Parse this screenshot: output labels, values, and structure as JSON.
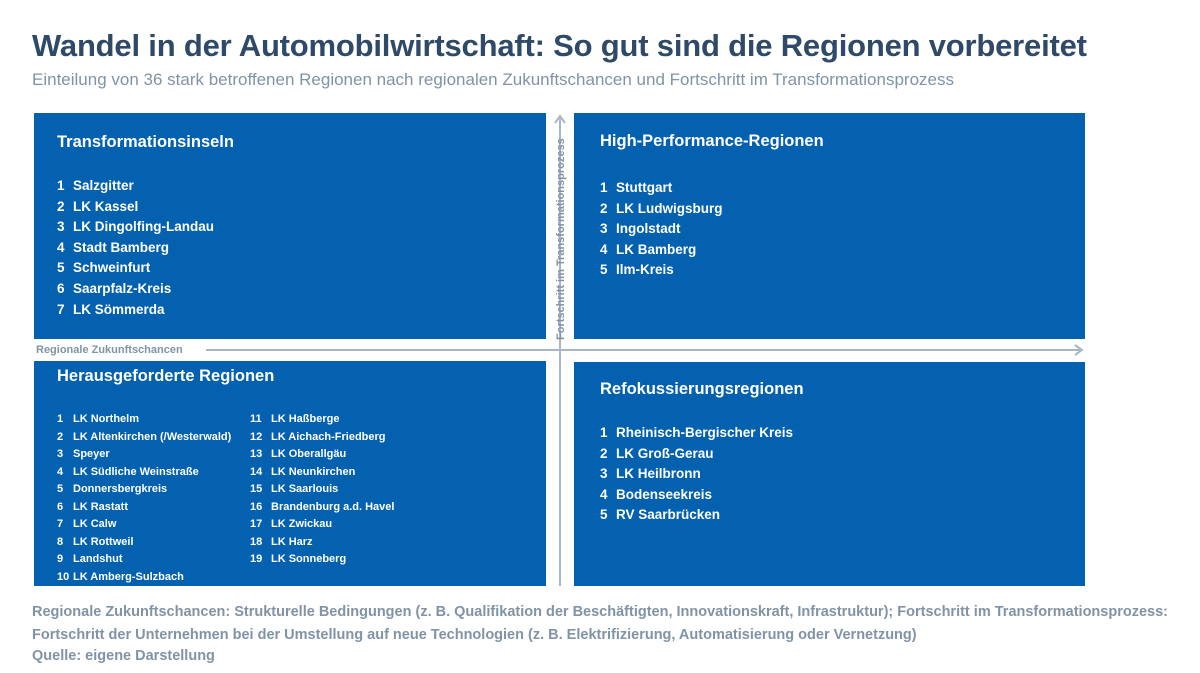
{
  "title": "Wandel in der Automobilwirtschaft: So gut sind die Regionen vorbereitet",
  "subtitle": "Einteilung von 36 stark betroffenen Regionen nach regionalen Zukunftschancen und Fortschritt im Transformationsprozess",
  "axes": {
    "x_label": "Regionale Zukunftschancen",
    "y_label": "Fortschritt im Transformationsprozess"
  },
  "colors": {
    "quadrant_fill": "#0461b0",
    "title_text": "#2f4a68",
    "muted_text": "#8193a6",
    "axis_line": "#a9b6c6"
  },
  "quadrants": {
    "top_left": {
      "title": "Transformationsinseln",
      "items": [
        {
          "num": "1",
          "name": "Salzgitter"
        },
        {
          "num": "2",
          "name": "LK Kassel"
        },
        {
          "num": "3",
          "name": "LK Dingolfing-Landau"
        },
        {
          "num": "4",
          "name": "Stadt Bamberg"
        },
        {
          "num": "5",
          "name": "Schweinfurt"
        },
        {
          "num": "6",
          "name": "Saarpfalz-Kreis"
        },
        {
          "num": "7",
          "name": "LK  Sömmerda"
        }
      ]
    },
    "top_right": {
      "title": "High-Performance-Regionen",
      "items": [
        {
          "num": "1",
          "name": "Stuttgart"
        },
        {
          "num": "2",
          "name": "LK Ludwigsburg"
        },
        {
          "num": "3",
          "name": "Ingolstadt"
        },
        {
          "num": "4",
          "name": "LK Bamberg"
        },
        {
          "num": "5",
          "name": "Ilm-Kreis"
        }
      ]
    },
    "bottom_left": {
      "title": "Herausgeforderte Regionen",
      "column1": [
        {
          "num": "1",
          "name": "LK Northelm"
        },
        {
          "num": "2",
          "name": "LK Altenkirchen (/Westerwald)"
        },
        {
          "num": "3",
          "name": "Speyer"
        },
        {
          "num": "4",
          "name": "LK Südliche Weinstraße"
        },
        {
          "num": "5",
          "name": "Donnersbergkreis"
        },
        {
          "num": "6",
          "name": "LK Rastatt"
        },
        {
          "num": "7",
          "name": "LK Calw"
        },
        {
          "num": "8",
          "name": "LK  Rottweil"
        },
        {
          "num": "9",
          "name": "Landshut"
        },
        {
          "num": "10",
          "name": "LK Amberg-Sulzbach"
        }
      ],
      "column2": [
        {
          "num": "11",
          "name": "LK Haßberge"
        },
        {
          "num": "12",
          "name": "LK Aichach-Friedberg"
        },
        {
          "num": "13",
          "name": "LK Oberallgäu"
        },
        {
          "num": "14",
          "name": "LK Neunkirchen"
        },
        {
          "num": "15",
          "name": "LK Saarlouis"
        },
        {
          "num": "16",
          "name": "Brandenburg a.d. Havel"
        },
        {
          "num": "17",
          "name": "LK Zwickau"
        },
        {
          "num": "18",
          "name": "LK Harz"
        },
        {
          "num": "19",
          "name": "LK Sonneberg"
        }
      ]
    },
    "bottom_right": {
      "title": "Refokussierungsregionen",
      "items": [
        {
          "num": "1",
          "name": "Rheinisch-Bergischer Kreis"
        },
        {
          "num": "2",
          "name": "LK Groß-Gerau"
        },
        {
          "num": "3",
          "name": "LK Heilbronn"
        },
        {
          "num": "4",
          "name": "Bodenseekreis"
        },
        {
          "num": "5",
          "name": "RV Saarbrücken"
        }
      ]
    }
  },
  "footnote": "Regionale Zukunftschancen: Strukturelle Bedingungen (z. B. Qualifikation der Beschäftigten, Innovationskraft, Infrastruktur); Fortschritt im Transformationsprozess: Fortschritt der Unternehmen bei der Umstellung auf neue Technologien (z. B. Elektrifizierung, Automatisierung oder Vernetzung)",
  "source": "Quelle: eigene Darstellung"
}
